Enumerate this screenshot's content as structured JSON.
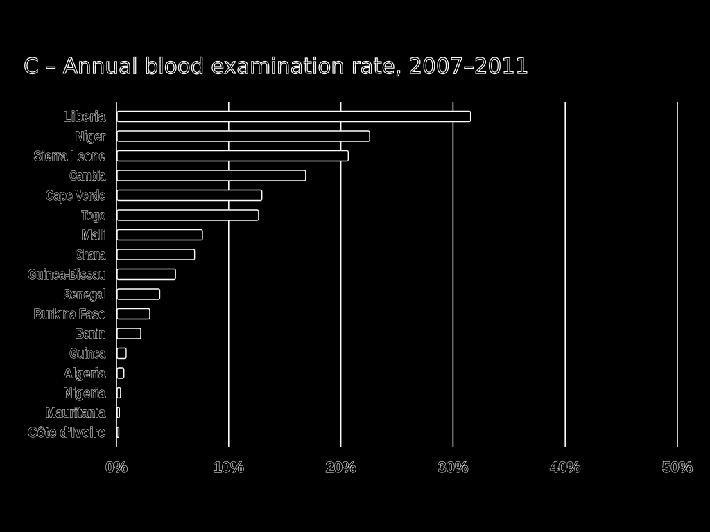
{
  "chart_data": {
    "type": "bar",
    "orientation": "horizontal",
    "title": "C – Annual blood examination rate, 2007–2011",
    "xlabel": "",
    "ylabel": "",
    "xlim": [
      0,
      50
    ],
    "x_ticks": [
      "0%",
      "10%",
      "20%",
      "30%",
      "40%",
      "50%"
    ],
    "grid": true,
    "categories": [
      "Liberia",
      "Niger",
      "Sierra Leone",
      "Gambia",
      "Cape Verde",
      "Togo",
      "Mali",
      "Ghana",
      "Guinea-Bissau",
      "Senegal",
      "Burkina Faso",
      "Benin",
      "Guinea",
      "Algeria",
      "Nigeria",
      "Mauritania",
      "Côte d’Ivoire"
    ],
    "values": [
      31.5,
      22.5,
      20.6,
      16.8,
      12.9,
      12.6,
      7.6,
      6.9,
      5.2,
      3.8,
      2.9,
      2.1,
      0.8,
      0.6,
      0.3,
      0.2,
      0.15
    ],
    "colors": {
      "background": "#000000",
      "outline": "#ffffff"
    }
  }
}
